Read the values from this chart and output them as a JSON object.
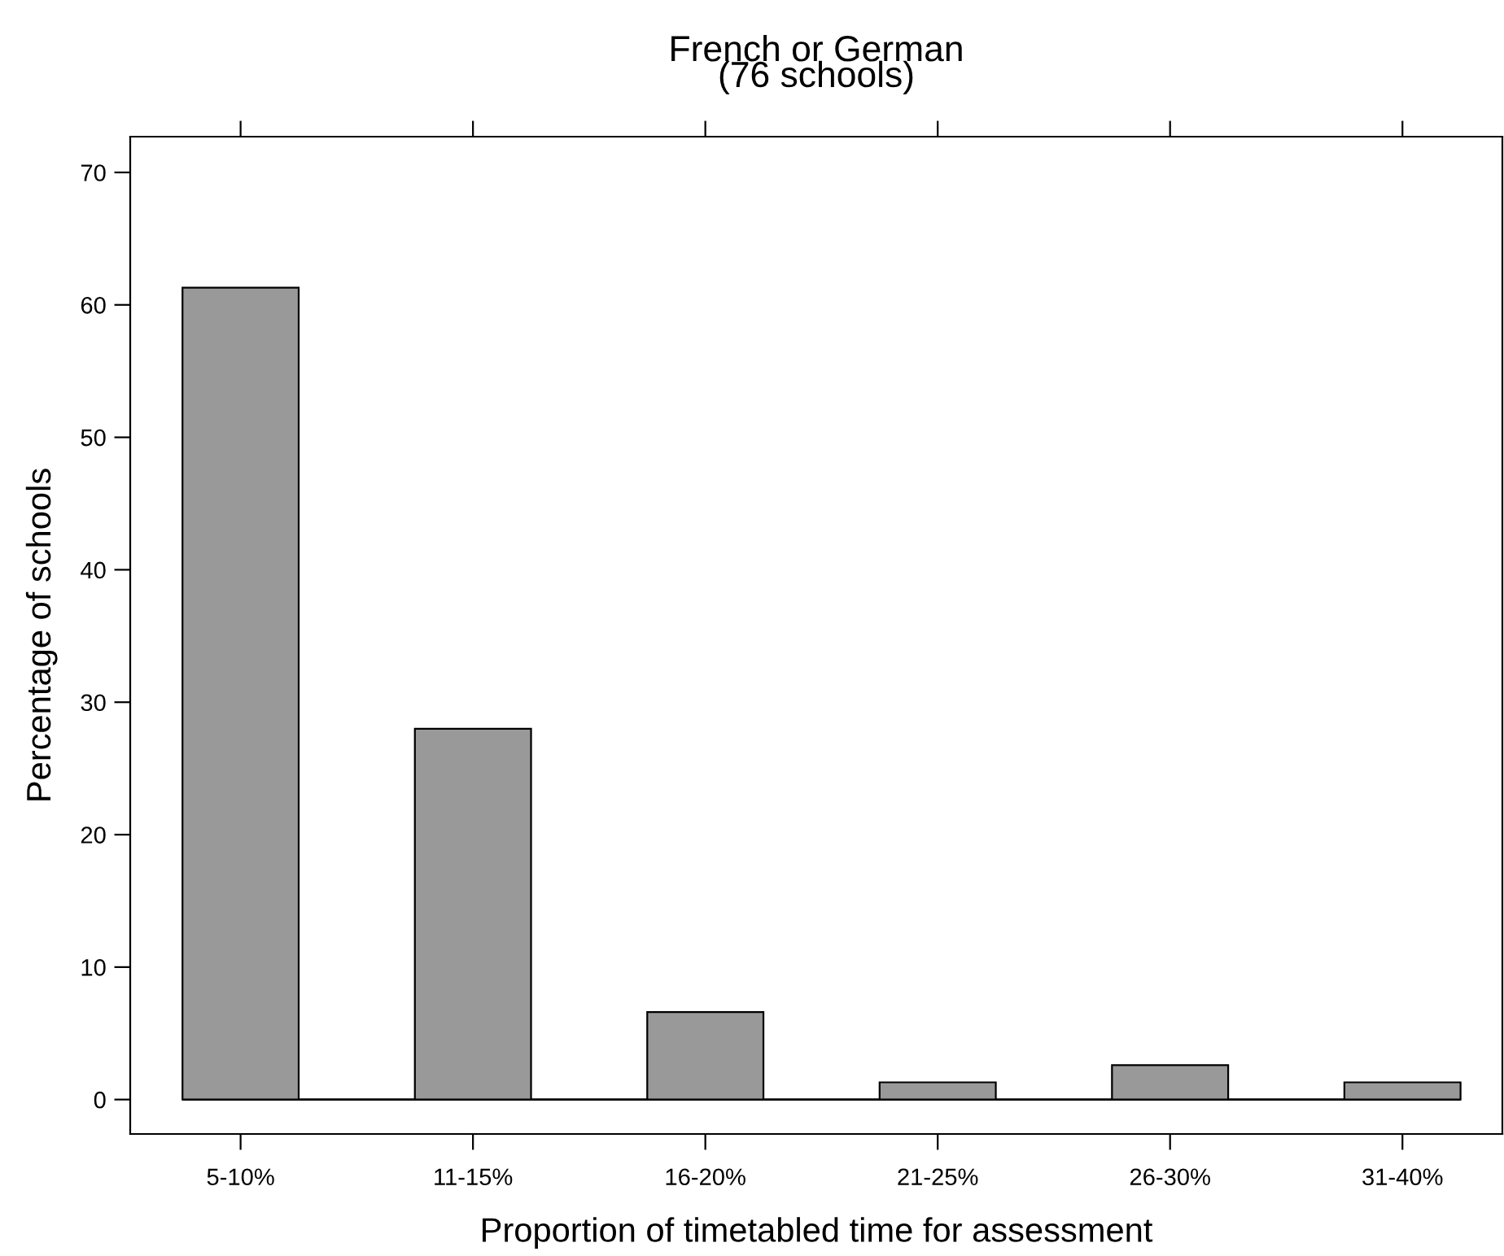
{
  "chart_data": {
    "type": "bar",
    "title": "French or German\n(76 schools)",
    "xlabel": "Proportion of timetabled time for assessment",
    "ylabel": "Percentage of schools",
    "categories": [
      "5-10%",
      "11-15%",
      "16-20%",
      "21-25%",
      "26-30%",
      "31-40%"
    ],
    "values": [
      61.3,
      28.0,
      6.6,
      1.3,
      2.6,
      1.3
    ],
    "color": "#999999",
    "ylim": [
      -2.6,
      72.7
    ],
    "yticks": [
      0,
      10,
      20,
      30,
      40,
      50,
      60,
      70
    ],
    "grid": false,
    "ref_lines": [
      {
        "axis": "y",
        "value": 0,
        "color": "#000000"
      }
    ]
  }
}
